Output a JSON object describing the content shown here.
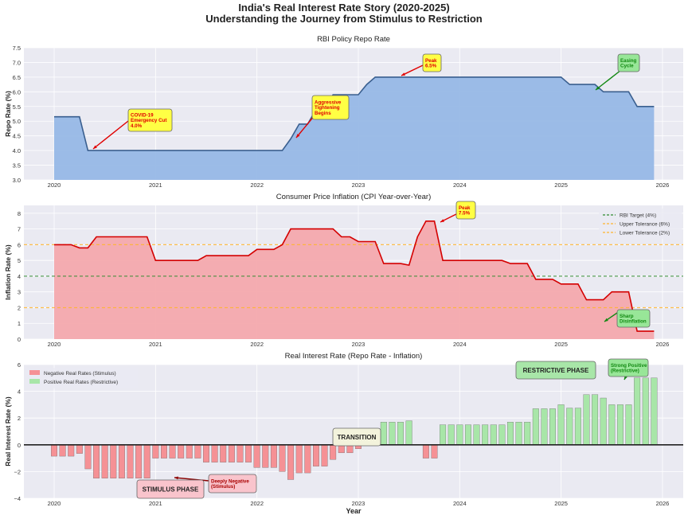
{
  "title_line1": "India's Real Interest Rate Story (2020-2025)",
  "title_line2": "Understanding the Journey from Stimulus to Restriction",
  "x_tick_labels": [
    "2020",
    "2021",
    "2022",
    "2023",
    "2024",
    "2025",
    "2026"
  ],
  "xlabel": "Year",
  "colors": {
    "repo_fill": "#97b8e6",
    "repo_line": "#3a5f8f",
    "cpi_fill": "#f4a9ad",
    "cpi_line": "#d40000",
    "neg_bar": "#f59195",
    "pos_bar": "#a8e6a8",
    "target": "#2e8b2e",
    "tolerance": "#ffb52e",
    "axes_bg": "#eaeaf2"
  },
  "chart_data": [
    {
      "type": "area",
      "title": "RBI Policy Repo Rate",
      "ylabel": "Repo Rate (%)",
      "xlim": [
        2019.7,
        2026.2
      ],
      "ylim": [
        3.0,
        7.5
      ],
      "y_ticks": [
        "3.0",
        "3.5",
        "4.0",
        "4.5",
        "5.0",
        "5.5",
        "6.0",
        "6.5",
        "7.0",
        "7.5"
      ],
      "x_start": "2020-01",
      "frequency": "monthly",
      "values": [
        5.15,
        5.15,
        5.15,
        5.15,
        4.0,
        4.0,
        4.0,
        4.0,
        4.0,
        4.0,
        4.0,
        4.0,
        4.0,
        4.0,
        4.0,
        4.0,
        4.0,
        4.0,
        4.0,
        4.0,
        4.0,
        4.0,
        4.0,
        4.0,
        4.0,
        4.0,
        4.0,
        4.0,
        4.4,
        4.9,
        4.9,
        5.4,
        5.4,
        5.9,
        5.9,
        5.9,
        5.9,
        6.25,
        6.5,
        6.5,
        6.5,
        6.5,
        6.5,
        6.5,
        6.5,
        6.5,
        6.5,
        6.5,
        6.5,
        6.5,
        6.5,
        6.5,
        6.5,
        6.5,
        6.5,
        6.5,
        6.5,
        6.5,
        6.5,
        6.5,
        6.5,
        6.25,
        6.25,
        6.25,
        6.25,
        6.0,
        6.0,
        6.0,
        6.0,
        5.5,
        5.5,
        5.5
      ],
      "annotations": [
        {
          "text": [
            "COVID-19",
            "Emergency Cut",
            "4.0%"
          ],
          "style": "yellow"
        },
        {
          "text": [
            "Aggressive",
            "Tightening",
            "Begins"
          ],
          "style": "yellow"
        },
        {
          "text": [
            "Peak",
            "6.5%"
          ],
          "style": "yellow"
        },
        {
          "text": [
            "Easing",
            "Cycle"
          ],
          "style": "green"
        }
      ]
    },
    {
      "type": "area",
      "title": "Consumer Price Inflation (CPI Year-over-Year)",
      "ylabel": "Inflation Rate (%)",
      "xlim": [
        2019.7,
        2026.2
      ],
      "ylim": [
        0,
        8.5
      ],
      "y_ticks": [
        "0",
        "1",
        "2",
        "3",
        "4",
        "5",
        "6",
        "7",
        "8"
      ],
      "x_start": "2020-01",
      "frequency": "monthly",
      "values": [
        6.0,
        6.0,
        6.0,
        5.8,
        5.8,
        6.5,
        6.5,
        6.5,
        6.5,
        6.5,
        6.5,
        6.5,
        5.0,
        5.0,
        5.0,
        5.0,
        5.0,
        5.0,
        5.3,
        5.3,
        5.3,
        5.3,
        5.3,
        5.3,
        5.7,
        5.7,
        5.7,
        6.0,
        7.0,
        7.0,
        7.0,
        7.0,
        7.0,
        7.0,
        6.5,
        6.5,
        6.2,
        6.2,
        6.2,
        4.8,
        4.8,
        4.8,
        4.7,
        6.5,
        7.5,
        7.5,
        5.0,
        5.0,
        5.0,
        5.0,
        5.0,
        5.0,
        5.0,
        5.0,
        4.8,
        4.8,
        4.8,
        3.8,
        3.8,
        3.8,
        3.5,
        3.5,
        3.5,
        2.5,
        2.5,
        2.5,
        3.0,
        3.0,
        3.0,
        0.5,
        0.5,
        0.5
      ],
      "reference_lines": [
        {
          "label": "RBI Target (4%)",
          "value": 4,
          "color": "#2e8b2e"
        },
        {
          "label": "Upper Tolerance (6%)",
          "value": 6,
          "color": "#ffb52e"
        },
        {
          "label": "Lower Tolerance (2%)",
          "value": 2,
          "color": "#ffb52e"
        }
      ],
      "legend_position": "top-right",
      "annotations": [
        {
          "text": [
            "Peak",
            "7.5%"
          ],
          "style": "yellow"
        },
        {
          "text": [
            "Sharp",
            "Disinflation"
          ],
          "style": "green"
        }
      ]
    },
    {
      "type": "bar",
      "title": "Real Interest Rate (Repo Rate - Inflation)",
      "ylabel": "Real Interest Rate (%)",
      "xlabel": "Year",
      "xlim": [
        2019.7,
        2026.2
      ],
      "ylim": [
        -4,
        6
      ],
      "y_ticks": [
        "−4",
        "−2",
        "0",
        "2",
        "4",
        "6"
      ],
      "x_start": "2020-01",
      "frequency": "monthly",
      "values": [
        -0.85,
        -0.85,
        -0.85,
        -0.65,
        -1.8,
        -2.5,
        -2.5,
        -2.5,
        -2.5,
        -2.5,
        -2.5,
        -2.5,
        -1.0,
        -1.0,
        -1.0,
        -1.0,
        -1.0,
        -1.0,
        -1.3,
        -1.3,
        -1.3,
        -1.3,
        -1.3,
        -1.3,
        -1.7,
        -1.7,
        -1.7,
        -2.0,
        -2.6,
        -2.1,
        -2.1,
        -1.6,
        -1.6,
        -1.1,
        -0.6,
        -0.6,
        -0.3,
        0.05,
        0.3,
        1.7,
        1.7,
        1.7,
        1.8,
        0.0,
        -1.0,
        -1.0,
        1.5,
        1.5,
        1.5,
        1.5,
        1.5,
        1.5,
        1.5,
        1.5,
        1.7,
        1.7,
        1.7,
        2.7,
        2.7,
        2.7,
        3.0,
        2.75,
        2.75,
        3.75,
        3.75,
        3.5,
        3.0,
        3.0,
        3.0,
        5.0,
        5.0,
        5.0
      ],
      "legend": [
        "Negative Real Rates (Stimulus)",
        "Positive Real Rates (Restrictive)"
      ],
      "legend_position": "top-left",
      "annotations": [
        {
          "text": [
            "TRANSITION"
          ],
          "style": "beige"
        },
        {
          "text": [
            "RESTRICTIVE PHASE"
          ],
          "style": "phase-green"
        },
        {
          "text": [
            "Strong Positive",
            "(Restrictive)"
          ],
          "style": "green"
        },
        {
          "text": [
            "Deeply Negative",
            "(Stimulus)"
          ],
          "style": "pink"
        },
        {
          "text": [
            "STIMULUS PHASE"
          ],
          "style": "phase-pink"
        }
      ]
    }
  ]
}
